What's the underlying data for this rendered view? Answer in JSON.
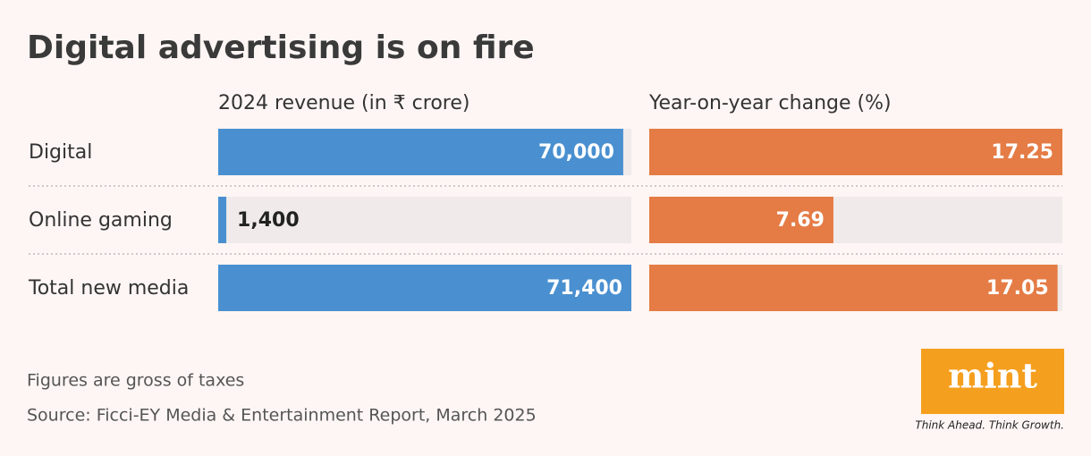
{
  "chart_data": {
    "type": "bar",
    "orientation": "horizontal",
    "title": "Digital advertising is on fire",
    "categories": [
      "Digital",
      "Online gaming",
      "Total new media"
    ],
    "series": [
      {
        "name": "2024 revenue (in ₹ crore)",
        "color": "#4a90d0",
        "values": [
          70000,
          1400,
          71400
        ],
        "value_labels": [
          "70,000",
          "1,400",
          "71,400"
        ]
      },
      {
        "name": "Year-on-year change (%)",
        "color": "#e57c45",
        "values": [
          17.25,
          7.69,
          17.05
        ]
      }
    ],
    "note": "Figures are gross of taxes",
    "source": "Source: Ficci-EY Media & Entertainment Report, March 2025"
  },
  "logo": {
    "name": "mint",
    "tagline": "Think Ahead. Think Growth."
  }
}
